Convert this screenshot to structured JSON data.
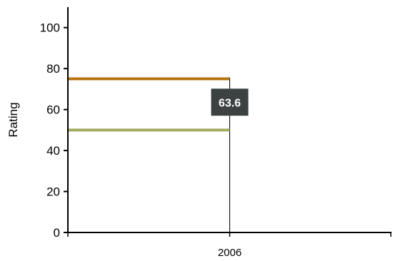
{
  "chart_data": {
    "type": "line",
    "title": "",
    "xlabel": "",
    "ylabel": "Rating",
    "ylim": [
      0,
      110
    ],
    "yticks": [
      0,
      20,
      40,
      60,
      80,
      100
    ],
    "xlim": [
      2005,
      2007
    ],
    "categories": [
      "2006"
    ],
    "series": [
      {
        "color": "#b5740f",
        "points": [
          {
            "x": 2005,
            "y": 75
          },
          {
            "x": 2006,
            "y": 75
          }
        ]
      },
      {
        "color": "#a3ab62",
        "points": [
          {
            "x": 2005,
            "y": 50
          },
          {
            "x": 2006,
            "y": 50
          }
        ]
      }
    ],
    "marker_line": {
      "x": 2006,
      "color": "#000000"
    },
    "data_label": {
      "text": "63.6",
      "x": 2006,
      "y": 63.6,
      "background": "#3c4242"
    },
    "grid": false,
    "legend": "none"
  }
}
